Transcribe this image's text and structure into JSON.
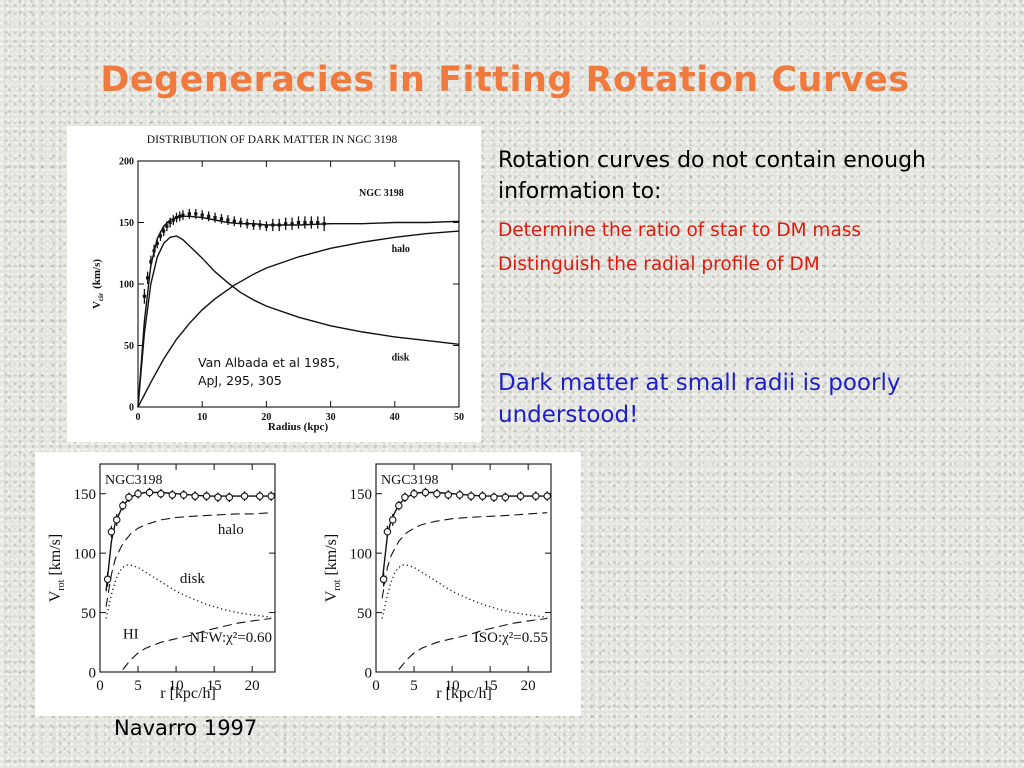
{
  "title": "Degeneracies in Fitting Rotation Curves",
  "text": {
    "intro": "Rotation curves do not contain enough information to:",
    "points": [
      "Determine the ratio of star to DM mass",
      "Distinguish the radial profile of DM"
    ],
    "conclusion": "Dark matter at small radii is poorly understood!",
    "credit": "Navarro 1997"
  },
  "colors": {
    "title": "#f07a3e",
    "points": "#e01a0c",
    "conclusion": "#1f1fc8"
  },
  "chart_data": [
    {
      "type": "line",
      "title": "DISTRIBUTION OF DARK MATTER IN NGC 3198",
      "inset_label": "NGC 3198",
      "xlabel": "Radius   (kpc)",
      "ylabel": "V",
      "ylabel_sub": "cir",
      "ylabel_unit": "(km/s)",
      "xlim": [
        0,
        50
      ],
      "ylim": [
        0,
        200
      ],
      "xticks": [
        0,
        10,
        20,
        30,
        40,
        50
      ],
      "yticks": [
        0,
        50,
        100,
        150,
        200
      ],
      "annotation": [
        "Van Albada et al 1985,",
        "ApJ, 295, 305"
      ],
      "observed": {
        "x": [
          1,
          1.5,
          2,
          2.5,
          3,
          3.5,
          4,
          4.5,
          5,
          5.5,
          6,
          6.5,
          7,
          8,
          9,
          10,
          11,
          12,
          13,
          14,
          15,
          16,
          17,
          18,
          19,
          20,
          21,
          22,
          23,
          24,
          25,
          26,
          27,
          28,
          29
        ],
        "y": [
          90,
          105,
          118,
          127,
          133,
          139,
          143,
          147,
          150,
          152,
          154,
          155,
          156,
          157,
          157,
          156,
          155,
          154,
          153,
          152,
          151,
          150,
          149,
          148,
          148,
          147,
          148,
          148,
          149,
          149,
          150,
          150,
          150,
          150,
          149
        ],
        "err": [
          6,
          5,
          5,
          5,
          4,
          4,
          4,
          4,
          4,
          4,
          4,
          4,
          4,
          4,
          4,
          4,
          4,
          4,
          4,
          4,
          4,
          4,
          4,
          4,
          4,
          4,
          5,
          5,
          5,
          5,
          5,
          5,
          5,
          5,
          6
        ]
      },
      "series": [
        {
          "name": "",
          "x": [
            0,
            1,
            2,
            3,
            4,
            5,
            6,
            7,
            8,
            10,
            12,
            14,
            16,
            18,
            20,
            22,
            25,
            30,
            35,
            40,
            45,
            50
          ],
          "y": [
            0,
            70,
            115,
            137,
            147,
            152,
            154,
            155,
            155,
            154,
            152,
            150,
            149,
            149,
            148,
            148,
            148,
            149,
            149,
            150,
            150,
            151
          ]
        },
        {
          "name": "disk",
          "x": [
            0,
            1,
            2,
            3,
            4,
            5,
            6,
            7,
            8,
            10,
            12,
            14,
            16,
            18,
            20,
            25,
            30,
            35,
            40,
            45,
            50
          ],
          "y": [
            0,
            60,
            100,
            122,
            133,
            138,
            139,
            136,
            131,
            121,
            110,
            101,
            93,
            87,
            82,
            73,
            66,
            61,
            57,
            54,
            51
          ]
        },
        {
          "name": "halo",
          "x": [
            0,
            2,
            4,
            6,
            8,
            10,
            12,
            15,
            18,
            20,
            25,
            30,
            35,
            40,
            45,
            50
          ],
          "y": [
            0,
            20,
            39,
            55,
            68,
            79,
            88,
            99,
            108,
            113,
            122,
            129,
            134,
            138,
            141,
            143
          ]
        }
      ]
    },
    {
      "type": "line",
      "title": "NGC3198",
      "xlabel": "r [kpc/h]",
      "ylabel": "V",
      "ylabel_sub": "rot",
      "ylabel_unit": "[km/s]",
      "xlim": [
        0,
        23
      ],
      "ylim": [
        0,
        175
      ],
      "xticks": [
        0,
        5,
        10,
        15,
        20
      ],
      "yticks": [
        0,
        50,
        100,
        150
      ],
      "fit_label": "NFW:χ²=0.60",
      "observed": {
        "x": [
          1,
          1.5,
          2.2,
          3,
          3.8,
          5,
          6.5,
          8,
          9.5,
          11,
          12.5,
          14,
          15.5,
          17,
          19,
          21,
          22.5
        ],
        "y": [
          78,
          118,
          128,
          140,
          147,
          150,
          151,
          150,
          149,
          149,
          148,
          148,
          147,
          147,
          148,
          148,
          148
        ],
        "err": [
          6,
          5,
          5,
          4,
          4,
          4,
          4,
          4,
          4,
          4,
          4,
          4,
          4,
          4,
          4,
          4,
          4
        ]
      },
      "series": [
        {
          "name": "",
          "style": "solid",
          "x": [
            0.8,
            1.5,
            2,
            3,
            4,
            5,
            6,
            7,
            8,
            10,
            12,
            14,
            16,
            18,
            20,
            22.5
          ],
          "y": [
            68,
            110,
            125,
            140,
            147,
            150,
            151,
            151,
            151,
            150,
            149,
            148,
            148,
            148,
            148,
            148
          ]
        },
        {
          "name": "halo",
          "style": "dashed",
          "x": [
            0.8,
            1.5,
            2,
            3,
            4,
            5,
            6,
            8,
            10,
            12,
            15,
            18,
            20,
            22.5
          ],
          "y": [
            55,
            82,
            95,
            108,
            116,
            121,
            124,
            128,
            130,
            131,
            132,
            133,
            133,
            134
          ]
        },
        {
          "name": "disk",
          "style": "dotted",
          "x": [
            0.8,
            1.5,
            2,
            2.5,
            3,
            3.5,
            4,
            5,
            6,
            8,
            10,
            12,
            14,
            16,
            18,
            20,
            22.5
          ],
          "y": [
            45,
            65,
            76,
            84,
            88,
            90,
            90,
            88,
            84,
            76,
            68,
            62,
            57,
            53,
            50,
            48,
            46
          ]
        },
        {
          "name": "HI",
          "style": "dashed",
          "x": [
            3,
            4,
            5,
            6,
            8,
            10,
            12,
            14,
            16,
            18,
            20,
            22.5
          ],
          "y": [
            2,
            10,
            16,
            20,
            25,
            28,
            31,
            35,
            38,
            41,
            43,
            45
          ]
        }
      ]
    },
    {
      "type": "line",
      "title": "NGC3198",
      "xlabel": "r [kpc/h]",
      "ylabel": "V",
      "ylabel_sub": "rot",
      "ylabel_unit": "[km/s]",
      "xlim": [
        0,
        23
      ],
      "ylim": [
        0,
        175
      ],
      "xticks": [
        0,
        5,
        10,
        15,
        20
      ],
      "yticks": [
        0,
        50,
        100,
        150
      ],
      "fit_label": "ISO:χ²=0.55",
      "observed": {
        "x": [
          1,
          1.5,
          2.2,
          3,
          3.8,
          5,
          6.5,
          8,
          9.5,
          11,
          12.5,
          14,
          15.5,
          17,
          19,
          21,
          22.5
        ],
        "y": [
          78,
          118,
          128,
          140,
          147,
          150,
          151,
          150,
          149,
          149,
          148,
          148,
          147,
          147,
          148,
          148,
          148
        ],
        "err": [
          6,
          5,
          5,
          4,
          4,
          4,
          4,
          4,
          4,
          4,
          4,
          4,
          4,
          4,
          4,
          4,
          4
        ]
      },
      "series": [
        {
          "name": "",
          "style": "solid",
          "x": [
            0.8,
            1.5,
            2,
            3,
            4,
            5,
            6,
            7,
            8,
            10,
            12,
            14,
            16,
            18,
            20,
            22.5
          ],
          "y": [
            75,
            115,
            128,
            141,
            147,
            150,
            151,
            151,
            151,
            150,
            149,
            148,
            148,
            148,
            148,
            148
          ]
        },
        {
          "name": "",
          "style": "dashed",
          "x": [
            0.8,
            1.5,
            2,
            3,
            4,
            5,
            6,
            8,
            10,
            12,
            15,
            18,
            20,
            22.5
          ],
          "y": [
            62,
            88,
            98,
            110,
            117,
            121,
            124,
            127,
            129,
            130,
            131,
            132,
            133,
            134
          ]
        },
        {
          "name": "",
          "style": "dotted",
          "x": [
            0.8,
            1.5,
            2,
            2.5,
            3,
            3.5,
            4,
            5,
            6,
            8,
            10,
            12,
            14,
            16,
            18,
            20,
            22.5
          ],
          "y": [
            45,
            65,
            76,
            84,
            88,
            90,
            90,
            88,
            84,
            76,
            68,
            62,
            57,
            53,
            50,
            48,
            46
          ]
        },
        {
          "name": "",
          "style": "dashed",
          "x": [
            3,
            4,
            5,
            6,
            8,
            10,
            12,
            14,
            16,
            18,
            20,
            22.5
          ],
          "y": [
            2,
            10,
            16,
            20,
            25,
            28,
            31,
            35,
            38,
            41,
            43,
            45
          ]
        }
      ]
    }
  ]
}
